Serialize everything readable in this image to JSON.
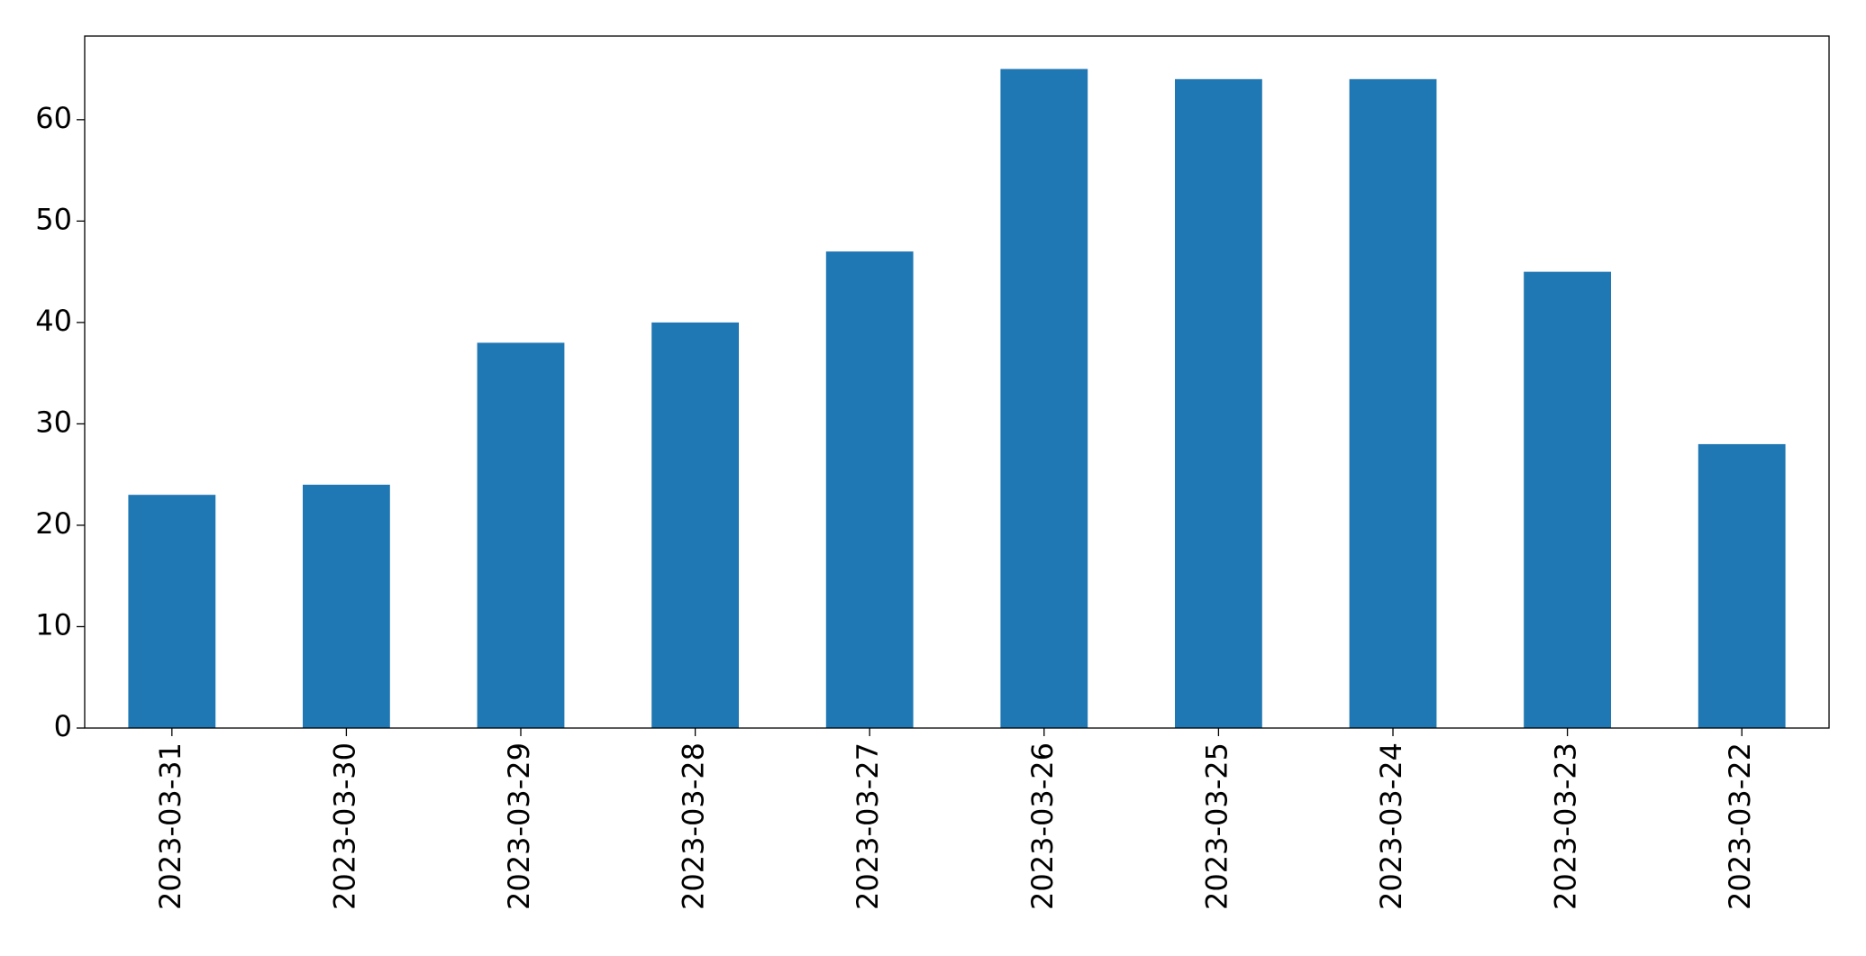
{
  "chart_data": {
    "type": "bar",
    "categories": [
      "2023-03-31",
      "2023-03-30",
      "2023-03-29",
      "2023-03-28",
      "2023-03-27",
      "2023-03-26",
      "2023-03-25",
      "2023-03-24",
      "2023-03-23",
      "2023-03-22"
    ],
    "values": [
      23,
      24,
      38,
      40,
      47,
      65,
      64,
      64,
      45,
      28
    ],
    "color": "#1f77b4",
    "ylim": [
      0,
      68.25
    ],
    "yticks": [
      0,
      10,
      20,
      30,
      40,
      50,
      60
    ],
    "grid": false
  }
}
